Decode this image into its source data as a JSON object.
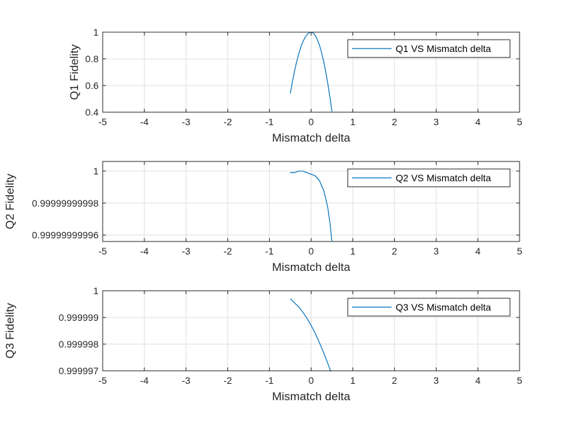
{
  "chart_data": [
    {
      "type": "line",
      "xlabel": "Mismatch delta",
      "ylabel": "Q1 Fidelity",
      "xlim": [
        -5,
        5
      ],
      "ylim": [
        0.4,
        1
      ],
      "xticks": [
        -5,
        -4,
        -3,
        -2,
        -1,
        0,
        1,
        2,
        3,
        4,
        5
      ],
      "xtick_labels": [
        "-5",
        "-4",
        "-3",
        "-2",
        "-1",
        "0",
        "1",
        "2",
        "3",
        "4",
        "5"
      ],
      "yticks": [
        0.4,
        0.6,
        0.8,
        1
      ],
      "ytick_labels": [
        "0.4",
        "0.6",
        "0.8",
        "1"
      ],
      "grid": true,
      "legend": "top-right",
      "series": [
        {
          "name": "Q1 VS Mismatch delta",
          "color": "#0072bd",
          "x": [
            -0.5,
            -0.45,
            -0.4,
            -0.35,
            -0.3,
            -0.25,
            -0.2,
            -0.15,
            -0.1,
            -0.05,
            0,
            0.05,
            0.1,
            0.15,
            0.2,
            0.25,
            0.3,
            0.35,
            0.4,
            0.45,
            0.5
          ],
          "y": [
            0.54,
            0.627,
            0.706,
            0.775,
            0.834,
            0.885,
            0.926,
            0.958,
            0.981,
            0.995,
            1.0,
            0.993,
            0.975,
            0.945,
            0.902,
            0.848,
            0.782,
            0.704,
            0.615,
            0.516,
            0.405
          ]
        }
      ]
    },
    {
      "type": "line",
      "xlabel": "Mismatch delta",
      "ylabel": "Q2 Fidelity",
      "xlim": [
        -5,
        5
      ],
      "ylim": [
        0.999999999956,
        1.000000000006
      ],
      "xticks": [
        -5,
        -4,
        -3,
        -2,
        -1,
        0,
        1,
        2,
        3,
        4,
        5
      ],
      "xtick_labels": [
        "-5",
        "-4",
        "-3",
        "-2",
        "-1",
        "0",
        "1",
        "2",
        "3",
        "4",
        "5"
      ],
      "yticks": [
        0.99999999996,
        0.99999999998,
        1
      ],
      "ytick_labels": [
        "0.99999999996",
        "0.99999999998",
        "1"
      ],
      "grid": true,
      "legend": "top-right",
      "series": [
        {
          "name": "Q2 VS Mismatch delta",
          "color": "#0072bd",
          "x": [
            -0.5,
            -0.4,
            -0.3,
            -0.2,
            -0.1,
            0,
            0.1,
            0.2,
            0.3,
            0.35,
            0.4,
            0.45,
            0.5
          ],
          "y": [
            0.999999999999,
            0.999999999999,
            1.0,
            1.0,
            0.999999999999,
            0.999999999998,
            0.999999999997,
            0.999999999994,
            0.999999999988,
            0.999999999983,
            0.999999999977,
            0.999999999968,
            0.999999999956
          ]
        }
      ]
    },
    {
      "type": "line",
      "xlabel": "Mismatch delta",
      "ylabel": "Q3 Fidelity",
      "xlim": [
        -5,
        5
      ],
      "ylim": [
        0.999997,
        1.0
      ],
      "xticks": [
        -5,
        -4,
        -3,
        -2,
        -1,
        0,
        1,
        2,
        3,
        4,
        5
      ],
      "xtick_labels": [
        "-5",
        "-4",
        "-3",
        "-2",
        "-1",
        "0",
        "1",
        "2",
        "3",
        "4",
        "5"
      ],
      "yticks": [
        0.999997,
        0.999998,
        0.999999,
        1
      ],
      "ytick_labels": [
        "0.999997",
        "0.999998",
        "0.999999",
        "1"
      ],
      "grid": true,
      "legend": "top-right",
      "series": [
        {
          "name": "Q3 VS Mismatch delta",
          "color": "#0072bd",
          "x": [
            -0.5,
            -0.4,
            -0.3,
            -0.2,
            -0.1,
            0,
            0.1,
            0.2,
            0.3,
            0.4,
            0.5
          ],
          "y": [
            0.9999997,
            0.99999955,
            0.9999994,
            0.9999992,
            0.99999897,
            0.9999987,
            0.9999984,
            0.99999805,
            0.99999768,
            0.99999728,
            0.99999685
          ]
        }
      ]
    }
  ]
}
